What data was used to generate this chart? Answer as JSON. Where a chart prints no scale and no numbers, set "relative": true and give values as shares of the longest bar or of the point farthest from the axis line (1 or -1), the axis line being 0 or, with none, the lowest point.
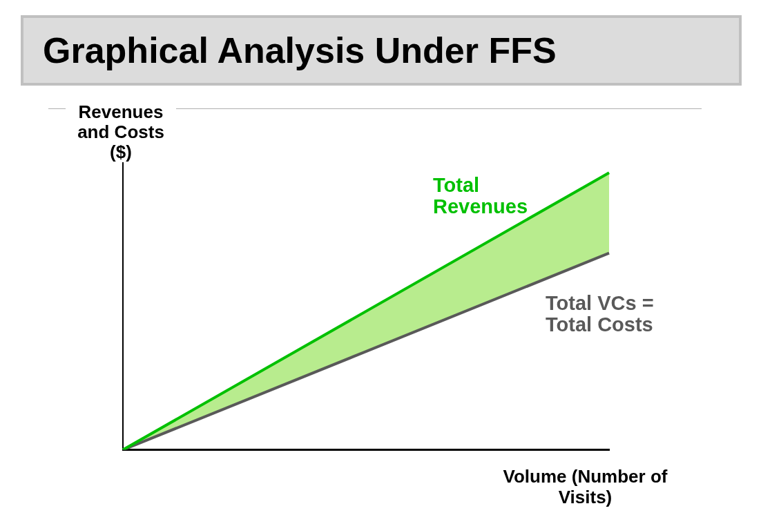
{
  "chart_data": {
    "type": "line",
    "title": "Graphical Analysis Under FFS",
    "xlabel": "Volume (Number of Visits)",
    "ylabel": "Revenues and Costs ($)",
    "relative": true,
    "categories": [
      null,
      null
    ],
    "series": [
      {
        "name": "Total Revenues",
        "color": "#00c000",
        "values": [
          0,
          1
        ],
        "lower": [
          0,
          0.71
        ],
        "upper": [
          0,
          1
        ]
      },
      {
        "name": "Total VCs = Total Costs",
        "color": "#595959",
        "values": [
          0,
          0.71
        ]
      }
    ],
    "grid": false,
    "legend": false,
    "marker": "none",
    "line_style": "solid"
  }
}
